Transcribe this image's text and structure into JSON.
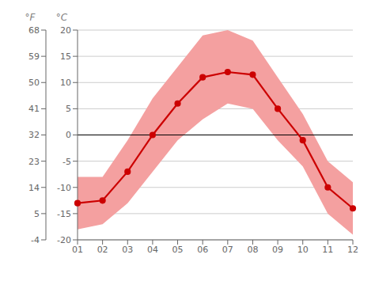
{
  "chart_data": {
    "type": "line",
    "categories": [
      "01",
      "02",
      "03",
      "04",
      "05",
      "06",
      "07",
      "08",
      "09",
      "10",
      "11",
      "12"
    ],
    "series": [
      {
        "type": "area",
        "color": "#f4a0a0",
        "low": [
          -18,
          -17,
          -13,
          -7,
          -1,
          3,
          6,
          5,
          -1,
          -6,
          -15,
          -19
        ],
        "high": [
          -8,
          -8,
          -1,
          7,
          13,
          19,
          20,
          18,
          11,
          4,
          -5,
          -9
        ]
      },
      {
        "type": "line",
        "color": "#cc0000",
        "marker": "o",
        "values": [
          -13,
          -12.5,
          -7,
          0,
          6,
          11,
          12,
          11.5,
          5,
          -1,
          -10,
          -14
        ]
      }
    ],
    "ylabel": "°C",
    "ylim": [
      -20,
      20
    ],
    "yticks": [
      -20,
      -15,
      -10,
      -5,
      0,
      5,
      10,
      15,
      20
    ],
    "y2label": "°F",
    "y2lim": [
      -4,
      68
    ],
    "y2ticks": [
      -4,
      5,
      14,
      23,
      32,
      41,
      50,
      59,
      68
    ],
    "hline": 0,
    "grid": true
  }
}
